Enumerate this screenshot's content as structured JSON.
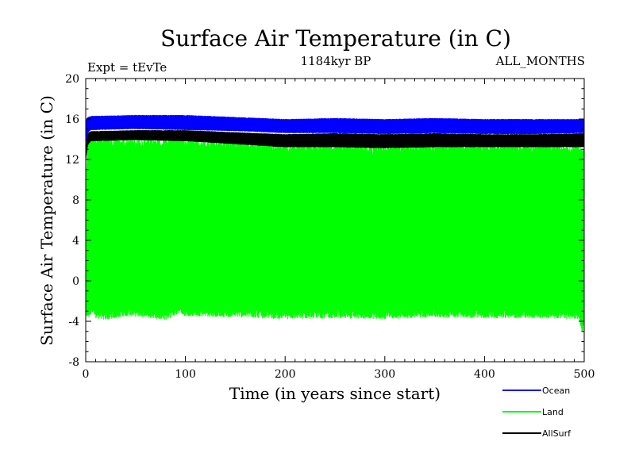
{
  "chart_data": {
    "type": "line",
    "title": "Surface Air Temperature (in C)",
    "subtitle_left": "Expt = tEvTe",
    "subtitle_center": "1184kyr BP",
    "subtitle_right": "ALL_MONTHS",
    "xlabel": "Time (in years since start)",
    "ylabel": "Surface Air Temperature (in C)",
    "xlim": [
      0,
      500
    ],
    "ylim": [
      -8,
      20
    ],
    "xticks": [
      0,
      100,
      200,
      300,
      400,
      500
    ],
    "yticks": [
      -8,
      -4,
      0,
      4,
      8,
      12,
      16,
      20
    ],
    "x_tick_labels": [
      "0",
      "100",
      "200",
      "300",
      "400",
      "500"
    ],
    "y_tick_labels": [
      "-8",
      "-4",
      "0",
      "4",
      "8",
      "12",
      "16",
      "20"
    ],
    "legend_position": "bottom-right",
    "series": [
      {
        "name": "Land",
        "color": "#00ff00",
        "x": [
          0,
          2,
          5,
          10,
          20,
          40,
          60,
          80,
          95,
          100,
          150,
          200,
          250,
          300,
          350,
          400,
          450,
          495,
          498,
          500
        ],
        "max": [
          10.2,
          13.5,
          14.6,
          14.3,
          14.2,
          14.1,
          14.0,
          14.0,
          14.6,
          14.0,
          13.8,
          13.6,
          13.5,
          13.4,
          13.6,
          13.5,
          13.5,
          13.3,
          13.0,
          13.0
        ],
        "min": [
          -3.5,
          -3.8,
          -3.3,
          -3.7,
          -3.9,
          -3.5,
          -3.6,
          -3.9,
          -3.2,
          -3.5,
          -3.6,
          -3.8,
          -3.7,
          -3.8,
          -3.6,
          -3.7,
          -3.7,
          -3.8,
          -5.2,
          -4.3
        ]
      },
      {
        "name": "AllSurf",
        "color": "#000000",
        "x": [
          0,
          2,
          5,
          50,
          100,
          150,
          200,
          250,
          300,
          350,
          400,
          450,
          500
        ],
        "max": [
          12.8,
          14.6,
          14.8,
          14.9,
          14.9,
          14.7,
          14.5,
          14.6,
          14.5,
          14.6,
          14.5,
          14.5,
          14.6
        ],
        "min": [
          12.0,
          13.4,
          13.8,
          13.9,
          13.8,
          13.5,
          13.2,
          13.2,
          13.1,
          13.2,
          13.2,
          13.2,
          13.2
        ]
      },
      {
        "name": "Ocean",
        "color": "#0000ff",
        "x": [
          0,
          2,
          5,
          50,
          100,
          150,
          200,
          250,
          300,
          350,
          400,
          450,
          500
        ],
        "max": [
          15.8,
          16.2,
          16.3,
          16.4,
          16.4,
          16.2,
          16.0,
          16.1,
          16.0,
          16.1,
          16.0,
          16.0,
          16.0
        ],
        "min": [
          13.5,
          14.6,
          14.9,
          15.0,
          14.9,
          14.8,
          14.6,
          14.6,
          14.5,
          14.6,
          14.5,
          14.5,
          14.6
        ]
      }
    ],
    "legend": [
      {
        "name": "Ocean",
        "color": "#0000ff"
      },
      {
        "name": "Land",
        "color": "#00ff00"
      },
      {
        "name": "AllSurf",
        "color": "#000000"
      }
    ]
  }
}
